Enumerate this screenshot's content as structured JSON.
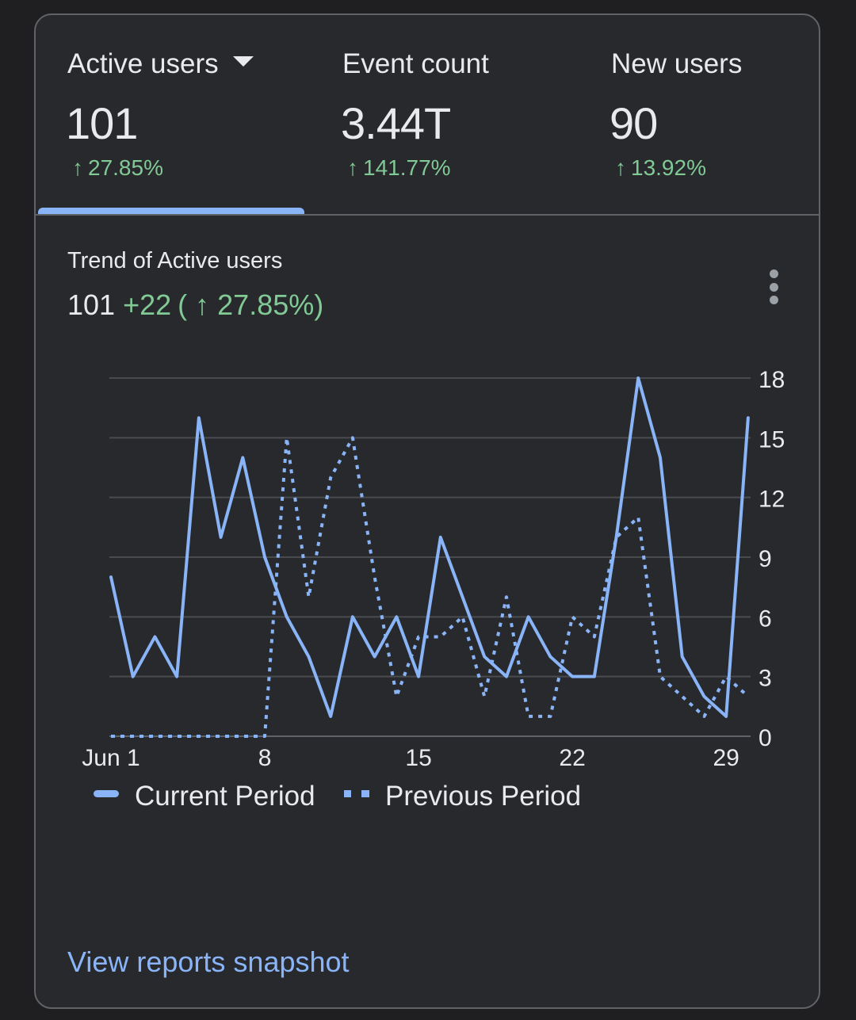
{
  "metrics": [
    {
      "label": "Active users",
      "value": "101",
      "arrow": "↑",
      "change": "27.85%",
      "selected": true
    },
    {
      "label": "Event count",
      "value": "3.44T",
      "arrow": "↑",
      "change": "141.77%"
    },
    {
      "label": "New users",
      "value": "90",
      "arrow": "↑",
      "change": "13.92%"
    }
  ],
  "trend": {
    "title": "Trend of Active users",
    "value": "101",
    "delta": "+22",
    "pct": "( ↑ 27.85%)"
  },
  "legend": {
    "current": "Current Period",
    "previous": "Previous Period"
  },
  "link": "View reports snapshot",
  "colors": {
    "series": "#8ab4f8",
    "positive": "#81c995",
    "grid": "#4a4b4f",
    "text": "#e8eaed"
  },
  "icons": {
    "dropdown": "caret-down-icon",
    "more": "more-vert-icon"
  },
  "chart_data": {
    "type": "line",
    "x": [
      1,
      2,
      3,
      4,
      5,
      6,
      7,
      8,
      9,
      10,
      11,
      12,
      13,
      14,
      15,
      16,
      17,
      18,
      19,
      20,
      21,
      22,
      23,
      24,
      25,
      26,
      27,
      28,
      29,
      30
    ],
    "x_ticks": [
      1,
      8,
      15,
      22,
      29
    ],
    "x_tick_labels": [
      "Jun 1",
      "8",
      "15",
      "22",
      "29"
    ],
    "y_ticks": [
      0,
      3,
      6,
      9,
      12,
      15,
      18
    ],
    "y_tick_labels": [
      "0",
      "3",
      "6",
      "9",
      "12",
      "15",
      "18"
    ],
    "ylim": [
      0,
      18
    ],
    "y_axis_side": "right",
    "grid": true,
    "legend_position": "bottom",
    "series": [
      {
        "name": "Current Period",
        "style": "solid",
        "values": [
          8,
          3,
          5,
          3,
          16,
          10,
          14,
          9,
          6,
          4,
          1,
          6,
          4,
          6,
          3,
          10,
          7,
          4,
          3,
          6,
          4,
          3,
          3,
          10,
          18,
          14,
          4,
          2,
          1,
          16
        ]
      },
      {
        "name": "Previous Period",
        "style": "dotted",
        "values": [
          0,
          0,
          0,
          0,
          0,
          0,
          0,
          0,
          15,
          7,
          13,
          15,
          8,
          2,
          5,
          5,
          6,
          2,
          7,
          1,
          1,
          6,
          5,
          10,
          11,
          3,
          2,
          1,
          3,
          2
        ]
      }
    ]
  }
}
